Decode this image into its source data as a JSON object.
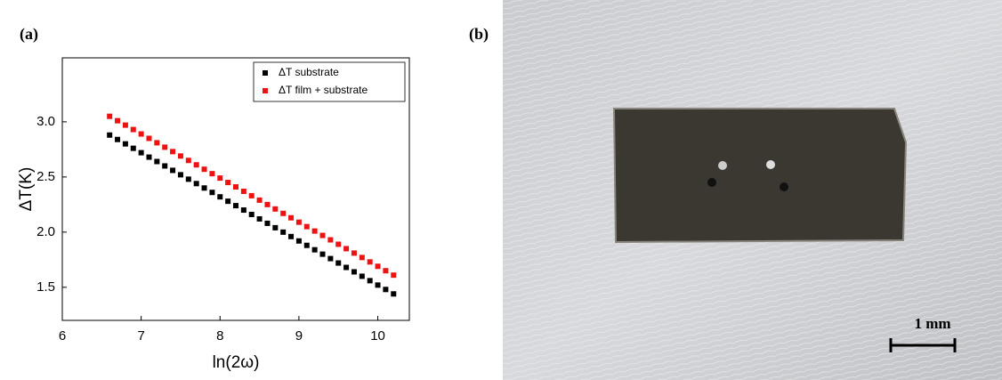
{
  "panels": [
    {
      "label": "(a)"
    },
    {
      "label": "(b)",
      "scale_bar": "1 mm"
    }
  ],
  "chart_data": {
    "type": "scatter",
    "xlabel": "ln(2ω)",
    "ylabel": "ΔT(K)",
    "x": [
      6.6,
      6.7,
      6.8,
      6.9,
      7.0,
      7.1,
      7.2,
      7.3,
      7.4,
      7.5,
      7.6,
      7.7,
      7.8,
      7.9,
      8.0,
      8.1,
      8.2,
      8.3,
      8.4,
      8.5,
      8.6,
      8.7,
      8.8,
      8.9,
      9.0,
      9.1,
      9.2,
      9.3,
      9.4,
      9.5,
      9.6,
      9.7,
      9.8,
      9.9,
      10.0,
      10.1,
      10.2
    ],
    "series": [
      {
        "name": "ΔT substrate",
        "color": "#000000",
        "values": [
          2.88,
          2.84,
          2.8,
          2.76,
          2.72,
          2.68,
          2.64,
          2.6,
          2.56,
          2.52,
          2.48,
          2.44,
          2.4,
          2.36,
          2.32,
          2.28,
          2.24,
          2.2,
          2.16,
          2.12,
          2.08,
          2.04,
          2.0,
          1.96,
          1.92,
          1.88,
          1.84,
          1.8,
          1.76,
          1.72,
          1.68,
          1.64,
          1.6,
          1.56,
          1.52,
          1.48,
          1.44
        ]
      },
      {
        "name": "ΔT film + substrate",
        "color": "#ee1111",
        "values": [
          3.05,
          3.01,
          2.97,
          2.93,
          2.89,
          2.85,
          2.81,
          2.77,
          2.73,
          2.69,
          2.65,
          2.61,
          2.57,
          2.53,
          2.49,
          2.45,
          2.41,
          2.37,
          2.33,
          2.29,
          2.25,
          2.21,
          2.17,
          2.13,
          2.09,
          2.05,
          2.01,
          1.97,
          1.93,
          1.89,
          1.85,
          1.81,
          1.77,
          1.73,
          1.69,
          1.65,
          1.61
        ]
      }
    ],
    "xlim": [
      6,
      10.4
    ],
    "xticks": [
      6,
      7,
      8,
      9,
      10
    ],
    "ylim": [
      1.2,
      3.58
    ],
    "yticks": [
      1.5,
      {
        "value": 2,
        "label": "2.0"
      },
      2.5,
      {
        "value": 3,
        "label": "3.0"
      }
    ],
    "legend": "upper right"
  }
}
